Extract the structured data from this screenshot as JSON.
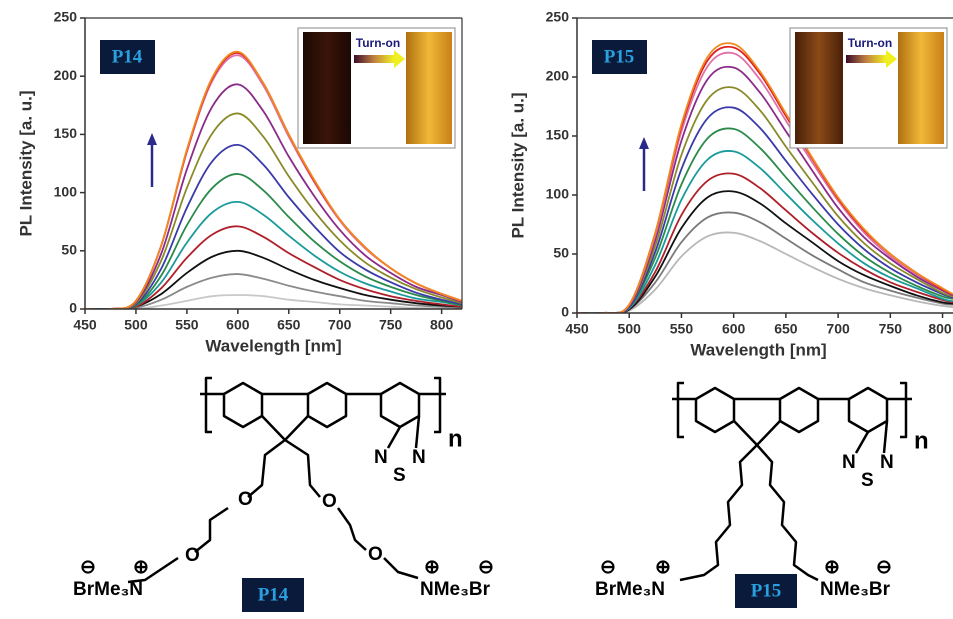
{
  "chart_data": [
    {
      "type": "line",
      "panel_label": "P14",
      "inset_text": "Turn-on",
      "xlabel": "Wavelength [nm]",
      "ylabel": "PL Intensity [a. u.]",
      "x": [
        450,
        475,
        500,
        525,
        550,
        575,
        600,
        625,
        650,
        675,
        700,
        725,
        750,
        775,
        800,
        820
      ],
      "xlim": [
        450,
        820
      ],
      "ylim": [
        0,
        250
      ],
      "xticks": [
        450,
        500,
        550,
        600,
        650,
        700,
        750,
        800
      ],
      "yticks": [
        0,
        50,
        100,
        150,
        200,
        250
      ],
      "series": [
        {
          "color": "#c8c8c8",
          "values": [
            0,
            0,
            0,
            3,
            7,
            11,
            12,
            11,
            8,
            6,
            4,
            3,
            2,
            1,
            1,
            0
          ]
        },
        {
          "color": "#8a8a8a",
          "values": [
            0,
            0,
            1,
            8,
            19,
            27,
            30,
            26,
            20,
            15,
            11,
            7,
            5,
            3,
            2,
            1
          ]
        },
        {
          "color": "#111111",
          "values": [
            0,
            0,
            2,
            13,
            31,
            45,
            50,
            44,
            34,
            25,
            18,
            12,
            8,
            5,
            3,
            2
          ]
        },
        {
          "color": "#b0202a",
          "values": [
            0,
            0,
            2,
            18,
            44,
            64,
            71,
            62,
            48,
            36,
            25,
            17,
            11,
            7,
            4,
            2
          ]
        },
        {
          "color": "#1a9a9a",
          "values": [
            0,
            0,
            3,
            23,
            57,
            83,
            92,
            81,
            63,
            46,
            32,
            22,
            15,
            9,
            6,
            3
          ]
        },
        {
          "color": "#2a8a4a",
          "values": [
            0,
            0,
            3,
            29,
            72,
            104,
            116,
            102,
            79,
            58,
            41,
            28,
            19,
            12,
            7,
            3
          ]
        },
        {
          "color": "#3a3aaa",
          "values": [
            0,
            0,
            4,
            35,
            87,
            127,
            141,
            124,
            96,
            71,
            49,
            34,
            23,
            14,
            8,
            4
          ]
        },
        {
          "color": "#8a8a2a",
          "values": [
            0,
            0,
            5,
            42,
            104,
            151,
            168,
            148,
            114,
            84,
            59,
            40,
            27,
            17,
            10,
            5
          ]
        },
        {
          "color": "#8a2a8a",
          "values": [
            0,
            0,
            6,
            48,
            120,
            174,
            193,
            170,
            131,
            97,
            68,
            46,
            31,
            19,
            12,
            6
          ]
        },
        {
          "color": "#e070a8",
          "values": [
            0,
            0,
            7,
            55,
            135,
            196,
            218,
            192,
            148,
            109,
            76,
            52,
            35,
            22,
            13,
            7
          ]
        },
        {
          "color": "#e02020",
          "values": [
            0,
            0,
            7,
            55,
            136,
            198,
            220,
            194,
            150,
            110,
            77,
            53,
            35,
            22,
            13,
            7
          ]
        },
        {
          "color": "#f08a20",
          "values": [
            0,
            0,
            7,
            55,
            137,
            199,
            221,
            194,
            150,
            111,
            77,
            53,
            35,
            22,
            13,
            7
          ]
        }
      ]
    },
    {
      "type": "line",
      "panel_label": "P15",
      "inset_text": "Turn-on",
      "xlabel": "Wavelength [nm]",
      "ylabel": "PL Intensity [a. u.]",
      "x": [
        450,
        475,
        500,
        525,
        550,
        575,
        600,
        625,
        650,
        675,
        700,
        725,
        750,
        775,
        800,
        810
      ],
      "xlim": [
        450,
        810
      ],
      "ylim": [
        0,
        250
      ],
      "xticks": [
        450,
        500,
        550,
        600,
        650,
        700,
        750,
        800
      ],
      "yticks": [
        0,
        50,
        100,
        150,
        200,
        250
      ],
      "series": [
        {
          "color": "#b8b8b8",
          "values": [
            0,
            0,
            2,
            20,
            48,
            65,
            68,
            61,
            50,
            39,
            29,
            21,
            15,
            10,
            6,
            5
          ]
        },
        {
          "color": "#7a7a7a",
          "values": [
            0,
            0,
            3,
            26,
            60,
            81,
            85,
            77,
            63,
            49,
            37,
            26,
            19,
            13,
            8,
            7
          ]
        },
        {
          "color": "#111111",
          "values": [
            0,
            0,
            3,
            31,
            72,
            98,
            103,
            93,
            76,
            60,
            44,
            32,
            23,
            15,
            9,
            8
          ]
        },
        {
          "color": "#b0202a",
          "values": [
            0,
            0,
            4,
            35,
            83,
            112,
            118,
            106,
            87,
            68,
            51,
            37,
            26,
            18,
            11,
            9
          ]
        },
        {
          "color": "#1a9a9a",
          "values": [
            0,
            0,
            4,
            41,
            96,
            130,
            137,
            123,
            101,
            79,
            59,
            42,
            30,
            21,
            12,
            10
          ]
        },
        {
          "color": "#2a8a4a",
          "values": [
            0,
            0,
            5,
            47,
            109,
            148,
            156,
            140,
            115,
            90,
            67,
            48,
            34,
            23,
            14,
            12
          ]
        },
        {
          "color": "#3a3aaa",
          "values": [
            0,
            0,
            5,
            52,
            122,
            165,
            174,
            157,
            129,
            101,
            75,
            54,
            38,
            26,
            16,
            13
          ]
        },
        {
          "color": "#8a8a2a",
          "values": [
            0,
            0,
            6,
            57,
            134,
            181,
            191,
            172,
            141,
            111,
            82,
            59,
            42,
            29,
            17,
            14
          ]
        },
        {
          "color": "#8a2a8a",
          "values": [
            0,
            0,
            6,
            62,
            146,
            198,
            208,
            187,
            154,
            121,
            89,
            64,
            46,
            31,
            19,
            15
          ]
        },
        {
          "color": "#e070a8",
          "values": [
            0,
            0,
            7,
            66,
            154,
            209,
            220,
            198,
            163,
            128,
            95,
            68,
            48,
            33,
            20,
            16
          ]
        },
        {
          "color": "#e02020",
          "values": [
            0,
            0,
            7,
            68,
            158,
            214,
            225,
            203,
            167,
            131,
            97,
            70,
            50,
            34,
            20,
            16
          ]
        },
        {
          "color": "#f08a20",
          "values": [
            0,
            0,
            7,
            68,
            160,
            217,
            228,
            205,
            169,
            132,
            98,
            71,
            50,
            34,
            21,
            16
          ]
        }
      ]
    }
  ],
  "structures": [
    {
      "label": "P14",
      "repeat": "n",
      "n_atom": "N",
      "s_atom": "S",
      "o_atom": "O",
      "left_end": "BrMe₃N",
      "right_end": "NMe₃Br",
      "plus": "⊕",
      "minus": "⊖"
    },
    {
      "label": "P15",
      "repeat": "n",
      "n_atom": "N",
      "s_atom": "S",
      "left_end": "BrMe₃N",
      "right_end": "NMe₃Br",
      "plus": "⊕",
      "minus": "⊖"
    }
  ]
}
